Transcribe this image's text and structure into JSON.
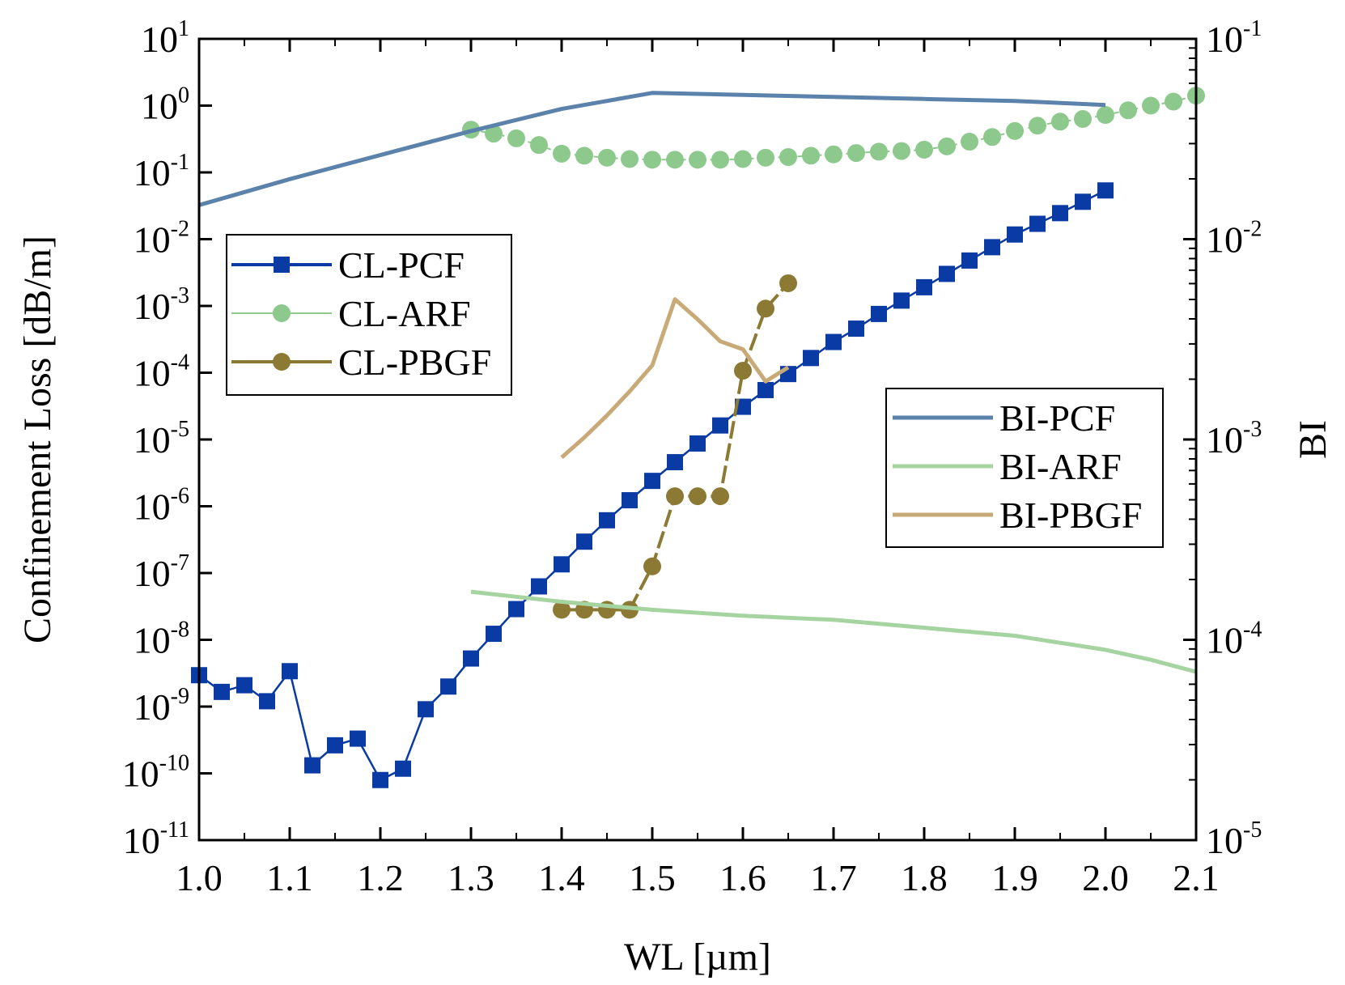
{
  "chart_data": {
    "type": "line",
    "xlabel": "WL [µm]",
    "ylabel_left": "Confinement Loss [dB/m]",
    "ylabel_right": "BI",
    "xlim": [
      1.0,
      2.1
    ],
    "xticks": [
      "1.0",
      "1.1",
      "1.2",
      "1.3",
      "1.4",
      "1.5",
      "1.6",
      "1.7",
      "1.8",
      "1.9",
      "2.0",
      "2.1"
    ],
    "y_left_scale": "log",
    "y_left_range_exp": [
      -11,
      1
    ],
    "y_left_ticks": [
      {
        "base": "10",
        "exp": "1",
        "value": 1
      },
      {
        "base": "10",
        "exp": "0",
        "value": 0
      },
      {
        "base": "10",
        "exp": "-1",
        "value": -1
      },
      {
        "base": "10",
        "exp": "-2",
        "value": -2
      },
      {
        "base": "10",
        "exp": "-3",
        "value": -3
      },
      {
        "base": "10",
        "exp": "-4",
        "value": -4
      },
      {
        "base": "10",
        "exp": "-5",
        "value": -5
      },
      {
        "base": "10",
        "exp": "-6",
        "value": -6
      },
      {
        "base": "10",
        "exp": "-7",
        "value": -7
      },
      {
        "base": "10",
        "exp": "-8",
        "value": -8
      },
      {
        "base": "10",
        "exp": "-9",
        "value": -9
      },
      {
        "base": "10",
        "exp": "-10",
        "value": -10
      },
      {
        "base": "10",
        "exp": "-11",
        "value": -11
      }
    ],
    "y_right_scale": "log",
    "y_right_range_exp": [
      -5,
      -1
    ],
    "y_right_ticks": [
      {
        "base": "10",
        "exp": "-1",
        "value": -1
      },
      {
        "base": "10",
        "exp": "-2",
        "value": -2
      },
      {
        "base": "10",
        "exp": "-3",
        "value": -3
      },
      {
        "base": "10",
        "exp": "-4",
        "value": -4
      },
      {
        "base": "10",
        "exp": "-5",
        "value": -5
      }
    ],
    "series": [
      {
        "name": "CL-PCF",
        "axis": "left",
        "style": "line-square",
        "color": "#0a3aa3",
        "x": [
          1.0,
          1.025,
          1.05,
          1.075,
          1.1,
          1.125,
          1.15,
          1.175,
          1.2,
          1.225,
          1.25,
          1.275,
          1.3,
          1.325,
          1.35,
          1.375,
          1.4,
          1.425,
          1.45,
          1.475,
          1.5,
          1.525,
          1.55,
          1.575,
          1.6,
          1.625,
          1.65,
          1.675,
          1.7,
          1.725,
          1.75,
          1.775,
          1.8,
          1.825,
          1.85,
          1.875,
          1.9,
          1.925,
          1.95,
          1.975,
          2.0
        ],
        "log10_y": [
          -8.53,
          -8.78,
          -8.68,
          -8.92,
          -8.47,
          -9.88,
          -9.58,
          -9.48,
          -10.1,
          -9.93,
          -9.04,
          -8.7,
          -8.28,
          -7.91,
          -7.54,
          -7.2,
          -6.87,
          -6.53,
          -6.21,
          -5.91,
          -5.62,
          -5.34,
          -5.06,
          -4.79,
          -4.51,
          -4.26,
          -4.02,
          -3.78,
          -3.54,
          -3.34,
          -3.12,
          -2.92,
          -2.72,
          -2.52,
          -2.32,
          -2.12,
          -1.93,
          -1.77,
          -1.61,
          -1.44,
          -1.27
        ]
      },
      {
        "name": "CL-ARF",
        "axis": "left",
        "style": "dots-dashed",
        "color": "#8dc98d",
        "x": [
          1.3,
          1.325,
          1.35,
          1.375,
          1.4,
          1.425,
          1.45,
          1.475,
          1.5,
          1.525,
          1.55,
          1.575,
          1.6,
          1.625,
          1.65,
          1.675,
          1.7,
          1.725,
          1.75,
          1.775,
          1.8,
          1.825,
          1.85,
          1.875,
          1.9,
          1.925,
          1.95,
          1.975,
          2.0,
          2.025,
          2.05,
          2.075,
          2.1
        ],
        "log10_y": [
          -0.36,
          -0.42,
          -0.49,
          -0.59,
          -0.72,
          -0.75,
          -0.78,
          -0.8,
          -0.81,
          -0.81,
          -0.81,
          -0.81,
          -0.8,
          -0.78,
          -0.77,
          -0.75,
          -0.73,
          -0.71,
          -0.69,
          -0.68,
          -0.66,
          -0.61,
          -0.54,
          -0.47,
          -0.38,
          -0.3,
          -0.24,
          -0.2,
          -0.14,
          -0.07,
          0.0,
          0.06,
          0.15
        ]
      },
      {
        "name": "CL-PBGF",
        "axis": "left",
        "style": "line-circle",
        "color": "#8c7a34",
        "x": [
          1.4,
          1.425,
          1.45,
          1.475,
          1.5,
          1.525,
          1.55,
          1.575,
          1.6,
          1.625,
          1.65
        ],
        "log10_y": [
          -7.55,
          -7.55,
          -7.55,
          -7.55,
          -6.9,
          -5.85,
          -5.85,
          -5.85,
          -3.97,
          -3.04,
          -2.66
        ]
      },
      {
        "name": "BI-PCF",
        "axis": "right",
        "style": "line",
        "color": "#5b82ab",
        "x": [
          1.0,
          1.1,
          1.2,
          1.3,
          1.4,
          1.5,
          1.6,
          1.7,
          1.8,
          1.9,
          2.0
        ],
        "log10_y": [
          -1.83,
          -1.7,
          -1.58,
          -1.46,
          -1.35,
          -1.27,
          -1.28,
          -1.29,
          -1.3,
          -1.31,
          -1.33
        ]
      },
      {
        "name": "BI-ARF",
        "axis": "right",
        "style": "line",
        "color": "#a6d4a0",
        "x": [
          1.3,
          1.4,
          1.5,
          1.6,
          1.7,
          1.8,
          1.9,
          2.0,
          2.05,
          2.1
        ],
        "log10_y": [
          -3.76,
          -3.81,
          -3.85,
          -3.88,
          -3.9,
          -3.94,
          -3.98,
          -4.05,
          -4.1,
          -4.16
        ]
      },
      {
        "name": "BI-PBGF",
        "axis": "right",
        "style": "line",
        "color": "#c8aa78",
        "x": [
          1.4,
          1.425,
          1.45,
          1.475,
          1.5,
          1.525,
          1.55,
          1.575,
          1.6,
          1.625,
          1.65
        ],
        "log10_y": [
          -3.09,
          -2.99,
          -2.88,
          -2.76,
          -2.63,
          -2.3,
          -2.4,
          -2.51,
          -2.55,
          -2.71,
          -2.64
        ]
      }
    ],
    "legend_left": [
      "CL-PCF",
      "CL-ARF",
      "CL-PBGF"
    ],
    "legend_right": [
      "BI-PCF",
      "BI-ARF",
      "BI-PBGF"
    ]
  }
}
